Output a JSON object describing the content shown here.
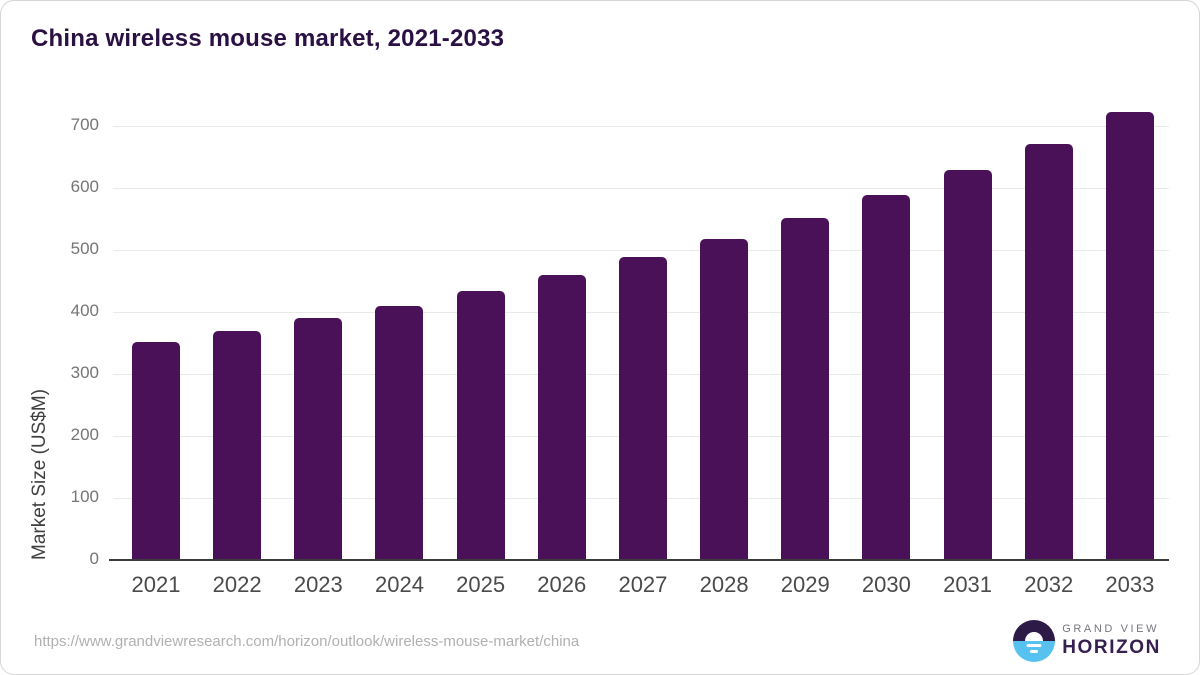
{
  "header": {
    "title": "China wireless mouse market, 2021-2033"
  },
  "chart_data": {
    "type": "bar",
    "title": "China wireless mouse market, 2021-2033",
    "categories": [
      "2021",
      "2022",
      "2023",
      "2024",
      "2025",
      "2026",
      "2027",
      "2028",
      "2029",
      "2030",
      "2031",
      "2032",
      "2033"
    ],
    "values": [
      352,
      370,
      390,
      410,
      434,
      460,
      488,
      517,
      551,
      589,
      629,
      671,
      722
    ],
    "xlabel": "",
    "ylabel": "Market Size (US$M)",
    "ylim": [
      0,
      700
    ],
    "y_ticks": [
      0,
      100,
      200,
      300,
      400,
      500,
      600,
      700
    ],
    "grid": true,
    "legend": "none",
    "bar_color": "#4A1158"
  },
  "footer": {
    "source_url": "https://www.grandviewresearch.com/horizon/outlook/wireless-mouse-market/china",
    "logo": {
      "top_text": "GRAND VIEW",
      "bottom_text": "HORIZON"
    }
  },
  "colors": {
    "bar": "#4A1158",
    "title": "#2B1143",
    "axis_line": "#3B3B3B",
    "gridline": "#E9E9E9",
    "y_tick_text": "#757575",
    "x_tick_text": "#4A4A4A",
    "url_text": "#B0B0B0",
    "logo_blue": "#57C2EF",
    "logo_purple": "#2E1A47"
  }
}
